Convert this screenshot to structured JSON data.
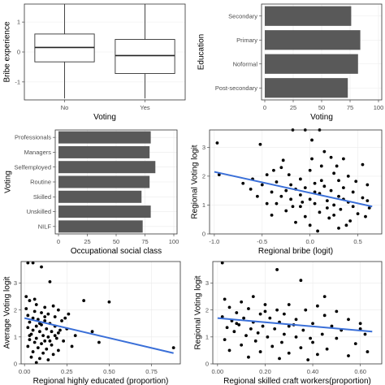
{
  "chart_data": [
    {
      "id": "p1",
      "type": "box",
      "xlabel": "Voting",
      "ylabel": "Bribe experience",
      "categories": [
        "No",
        "Yes"
      ],
      "ylim": [
        -1.6,
        1.6
      ],
      "yticks": [
        -1,
        0,
        1
      ],
      "boxes": [
        {
          "category": "No",
          "min": -1.55,
          "q1": -0.33,
          "median": 0.15,
          "q3": 0.6,
          "max": 1.6
        },
        {
          "category": "Yes",
          "min": -1.55,
          "q1": -0.72,
          "median": -0.12,
          "q3": 0.42,
          "max": 1.6
        }
      ]
    },
    {
      "id": "p2",
      "type": "hbar",
      "xlabel": "Voting",
      "ylabel": "Education",
      "categories": [
        "Secondary",
        "Primary",
        "Noformal",
        "Post-secondary"
      ],
      "values": [
        76,
        84,
        82,
        73
      ],
      "xlim": [
        0,
        100
      ],
      "xticks": [
        0,
        25,
        50,
        75,
        100
      ]
    },
    {
      "id": "p3",
      "type": "hbar",
      "xlabel": "Occupational social class",
      "ylabel": "Voting",
      "categories": [
        "Professionals",
        "Managers",
        "Selfemployed",
        "Routine",
        "Skilled",
        "Unskilled",
        "NILF"
      ],
      "values": [
        80,
        79,
        84,
        79,
        72,
        80,
        73
      ],
      "xlim": [
        0,
        100
      ],
      "xticks": [
        0,
        25,
        50,
        75,
        100
      ]
    },
    {
      "id": "p4",
      "type": "scatter",
      "xlabel": "Regional bribe (logit)",
      "ylabel": "Regional Voting logit",
      "xlim": [
        -1.05,
        0.75
      ],
      "ylim": [
        0,
        3.6
      ],
      "xticks": [
        -1.0,
        -0.5,
        0.0,
        0.5
      ],
      "yticks": [
        0,
        1,
        2,
        3
      ],
      "fit": [
        [
          -1.0,
          2.15
        ],
        [
          0.65,
          0.95
        ]
      ],
      "points": [
        [
          -0.97,
          3.15
        ],
        [
          -0.95,
          2.05
        ],
        [
          -0.52,
          3.1
        ],
        [
          -0.18,
          3.6
        ],
        [
          -0.05,
          3.6
        ],
        [
          0.1,
          3.6
        ],
        [
          0.02,
          3.25
        ],
        [
          0.15,
          2.85
        ],
        [
          0.22,
          2.65
        ],
        [
          0.35,
          2.6
        ],
        [
          0.55,
          2.4
        ],
        [
          0.12,
          2.35
        ],
        [
          -0.3,
          2.3
        ],
        [
          -0.38,
          2.2
        ],
        [
          0.0,
          2.2
        ],
        [
          0.25,
          2.1
        ],
        [
          0.4,
          2.0
        ],
        [
          -0.22,
          2.05
        ],
        [
          -0.45,
          2.05
        ],
        [
          -0.6,
          1.9
        ],
        [
          -0.1,
          1.9
        ],
        [
          0.3,
          1.85
        ],
        [
          0.48,
          1.82
        ],
        [
          0.6,
          1.7
        ],
        [
          0.05,
          1.75
        ],
        [
          -0.2,
          1.7
        ],
        [
          -0.35,
          1.8
        ],
        [
          -0.5,
          1.7
        ],
        [
          0.15,
          1.65
        ],
        [
          0.35,
          1.6
        ],
        [
          -0.05,
          1.6
        ],
        [
          -0.15,
          1.55
        ],
        [
          -0.25,
          1.5
        ],
        [
          0.22,
          1.5
        ],
        [
          0.45,
          1.45
        ],
        [
          -0.4,
          1.45
        ],
        [
          0.05,
          1.45
        ],
        [
          0.1,
          1.4
        ],
        [
          -0.1,
          1.35
        ],
        [
          0.3,
          1.3
        ],
        [
          -0.3,
          1.3
        ],
        [
          0.55,
          1.25
        ],
        [
          0.0,
          1.2
        ],
        [
          -0.2,
          1.2
        ],
        [
          0.18,
          1.15
        ],
        [
          0.4,
          1.1
        ],
        [
          -0.45,
          1.05
        ],
        [
          0.05,
          1.05
        ],
        [
          0.25,
          1.0
        ],
        [
          -0.1,
          0.95
        ],
        [
          0.62,
          0.9
        ],
        [
          0.32,
          0.85
        ],
        [
          -0.25,
          0.8
        ],
        [
          0.1,
          0.75
        ],
        [
          0.5,
          0.7
        ],
        [
          -0.4,
          0.65
        ],
        [
          0.2,
          0.55
        ],
        [
          0.42,
          0.45
        ],
        [
          -0.15,
          0.4
        ],
        [
          0.0,
          0.3
        ],
        [
          0.3,
          0.2
        ],
        [
          0.08,
          0.1
        ],
        [
          -0.55,
          1.3
        ],
        [
          -0.62,
          1.55
        ],
        [
          -0.7,
          1.75
        ],
        [
          -0.35,
          1.05
        ],
        [
          -0.05,
          0.6
        ],
        [
          0.25,
          0.65
        ],
        [
          0.45,
          0.95
        ],
        [
          0.6,
          1.15
        ],
        [
          0.58,
          0.6
        ],
        [
          -0.28,
          2.55
        ],
        [
          0.12,
          1.85
        ],
        [
          0.35,
          1.2
        ],
        [
          0.18,
          0.9
        ],
        [
          -0.08,
          1.1
        ],
        [
          0.02,
          2.6
        ],
        [
          0.28,
          2.35
        ],
        [
          -0.18,
          0.95
        ],
        [
          0.38,
          0.3
        ]
      ]
    },
    {
      "id": "p5",
      "type": "scatter",
      "xlabel": "Regional highly educated (proportion)",
      "ylabel": "Average Voting logit",
      "xlim": [
        -0.02,
        0.92
      ],
      "ylim": [
        0,
        3.8
      ],
      "xticks": [
        0.0,
        0.25,
        0.5,
        0.75
      ],
      "yticks": [
        0,
        1,
        2,
        3
      ],
      "fit": [
        [
          0.0,
          1.7
        ],
        [
          0.88,
          0.4
        ]
      ],
      "points": [
        [
          0.02,
          3.75
        ],
        [
          0.05,
          3.75
        ],
        [
          0.1,
          3.6
        ],
        [
          0.15,
          3.05
        ],
        [
          0.5,
          2.3
        ],
        [
          0.01,
          2.5
        ],
        [
          0.03,
          2.35
        ],
        [
          0.07,
          2.2
        ],
        [
          0.12,
          2.1
        ],
        [
          0.2,
          2.0
        ],
        [
          0.06,
          1.95
        ],
        [
          0.1,
          1.9
        ],
        [
          0.14,
          1.85
        ],
        [
          0.02,
          1.8
        ],
        [
          0.18,
          1.75
        ],
        [
          0.05,
          1.7
        ],
        [
          0.08,
          1.65
        ],
        [
          0.12,
          1.6
        ],
        [
          0.22,
          1.6
        ],
        [
          0.03,
          1.55
        ],
        [
          0.15,
          1.5
        ],
        [
          0.1,
          1.45
        ],
        [
          0.07,
          1.4
        ],
        [
          0.18,
          1.4
        ],
        [
          0.02,
          1.35
        ],
        [
          0.13,
          1.3
        ],
        [
          0.25,
          1.3
        ],
        [
          0.05,
          1.25
        ],
        [
          0.09,
          1.2
        ],
        [
          0.16,
          1.2
        ],
        [
          0.2,
          1.15
        ],
        [
          0.04,
          1.1
        ],
        [
          0.11,
          1.05
        ],
        [
          0.14,
          1.0
        ],
        [
          0.07,
          0.95
        ],
        [
          0.19,
          0.95
        ],
        [
          0.03,
          0.9
        ],
        [
          0.12,
          0.85
        ],
        [
          0.23,
          0.85
        ],
        [
          0.06,
          0.8
        ],
        [
          0.1,
          0.75
        ],
        [
          0.16,
          0.7
        ],
        [
          0.02,
          0.65
        ],
        [
          0.08,
          0.6
        ],
        [
          0.13,
          0.55
        ],
        [
          0.2,
          0.5
        ],
        [
          0.05,
          0.45
        ],
        [
          0.11,
          0.4
        ],
        [
          0.17,
          0.35
        ],
        [
          0.04,
          0.25
        ],
        [
          0.09,
          0.2
        ],
        [
          0.14,
          0.15
        ],
        [
          0.07,
          0.05
        ],
        [
          0.3,
          1.05
        ],
        [
          0.28,
          0.65
        ],
        [
          0.35,
          2.35
        ],
        [
          0.26,
          1.85
        ],
        [
          0.4,
          1.2
        ],
        [
          0.44,
          0.8
        ],
        [
          0.88,
          0.6
        ],
        [
          0.01,
          2.05
        ],
        [
          0.06,
          2.4
        ],
        [
          0.17,
          2.15
        ],
        [
          0.24,
          1.7
        ],
        [
          0.12,
          1.75
        ],
        [
          0.03,
          1.05
        ],
        [
          0.15,
          0.85
        ],
        [
          0.21,
          1.25
        ],
        [
          0.09,
          1.5
        ],
        [
          0.18,
          1.05
        ]
      ]
    },
    {
      "id": "p6",
      "type": "scatter",
      "xlabel": "Regional skilled craft  workers(proportion)",
      "ylabel": "Regional Voting logit",
      "xlim": [
        -0.02,
        0.69
      ],
      "ylim": [
        0,
        3.8
      ],
      "xticks": [
        0.0,
        0.2,
        0.4,
        0.6
      ],
      "yticks": [
        0,
        1,
        2,
        3
      ],
      "fit": [
        [
          0.0,
          1.7
        ],
        [
          0.65,
          1.2
        ]
      ],
      "points": [
        [
          0.02,
          3.75
        ],
        [
          0.25,
          3.5
        ],
        [
          0.35,
          3.1
        ],
        [
          0.15,
          2.5
        ],
        [
          0.03,
          2.4
        ],
        [
          0.1,
          2.3
        ],
        [
          0.2,
          2.2
        ],
        [
          0.3,
          2.2
        ],
        [
          0.42,
          2.15
        ],
        [
          0.05,
          2.1
        ],
        [
          0.13,
          2.05
        ],
        [
          0.25,
          2.0
        ],
        [
          0.37,
          2.0
        ],
        [
          0.5,
          1.95
        ],
        [
          0.08,
          1.9
        ],
        [
          0.18,
          1.85
        ],
        [
          0.28,
          1.85
        ],
        [
          0.45,
          1.8
        ],
        [
          0.02,
          1.75
        ],
        [
          0.11,
          1.7
        ],
        [
          0.22,
          1.7
        ],
        [
          0.33,
          1.65
        ],
        [
          0.55,
          1.65
        ],
        [
          0.06,
          1.6
        ],
        [
          0.15,
          1.55
        ],
        [
          0.26,
          1.55
        ],
        [
          0.4,
          1.5
        ],
        [
          0.6,
          1.5
        ],
        [
          0.09,
          1.45
        ],
        [
          0.19,
          1.4
        ],
        [
          0.3,
          1.4
        ],
        [
          0.48,
          1.4
        ],
        [
          0.04,
          1.35
        ],
        [
          0.14,
          1.3
        ],
        [
          0.24,
          1.3
        ],
        [
          0.36,
          1.25
        ],
        [
          0.52,
          1.25
        ],
        [
          0.07,
          1.2
        ],
        [
          0.17,
          1.15
        ],
        [
          0.28,
          1.1
        ],
        [
          0.44,
          1.1
        ],
        [
          0.62,
          1.1
        ],
        [
          0.12,
          1.05
        ],
        [
          0.21,
          1.0
        ],
        [
          0.33,
          1.0
        ],
        [
          0.5,
          0.95
        ],
        [
          0.03,
          0.9
        ],
        [
          0.16,
          0.85
        ],
        [
          0.27,
          0.8
        ],
        [
          0.4,
          0.8
        ],
        [
          0.58,
          0.75
        ],
        [
          0.1,
          0.7
        ],
        [
          0.23,
          0.65
        ],
        [
          0.35,
          0.6
        ],
        [
          0.46,
          0.55
        ],
        [
          0.05,
          0.5
        ],
        [
          0.18,
          0.45
        ],
        [
          0.3,
          0.4
        ],
        [
          0.42,
          0.35
        ],
        [
          0.55,
          0.3
        ],
        [
          0.13,
          0.25
        ],
        [
          0.26,
          0.2
        ],
        [
          0.38,
          0.15
        ],
        [
          0.63,
          0.45
        ],
        [
          0.45,
          2.5
        ],
        [
          0.08,
          1.5
        ],
        [
          0.2,
          1.95
        ],
        [
          0.32,
          1.45
        ],
        [
          0.39,
          0.95
        ],
        [
          0.6,
          1.3
        ]
      ]
    }
  ]
}
